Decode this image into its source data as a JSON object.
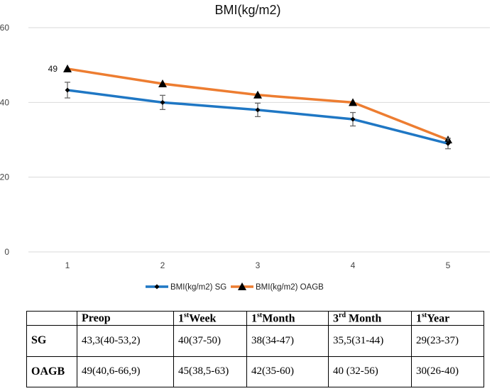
{
  "chart_data": {
    "type": "line",
    "title": "BMI(kg/m2)",
    "x": [
      1,
      2,
      3,
      4,
      5
    ],
    "categories": [
      "1",
      "2",
      "3",
      "4",
      "5"
    ],
    "ylim": [
      0,
      60
    ],
    "yticks": [
      0,
      20,
      40,
      60
    ],
    "grid": true,
    "legend_position": "bottom",
    "series": [
      {
        "name": "BMI(kg/m2) SG",
        "color": "#1f77c4",
        "marker": "diamond",
        "values": [
          43.3,
          40,
          38,
          35.5,
          29
        ],
        "error_low": [
          41.2,
          38.1,
          36.2,
          33.7,
          27.6
        ],
        "error_high": [
          45.4,
          41.9,
          39.8,
          37.3,
          30.4
        ]
      },
      {
        "name": "BMI(kg/m2) OAGB",
        "color": "#ed7d31",
        "marker": "triangle",
        "values": [
          49,
          45,
          42,
          40,
          30
        ]
      }
    ],
    "annotations": [
      {
        "series": 1,
        "index": 0,
        "text": "49"
      }
    ]
  },
  "table": {
    "headers": [
      {
        "main": "",
        "sup": "",
        "rest": ""
      },
      {
        "main": "Preop",
        "sup": "",
        "rest": ""
      },
      {
        "main": "1",
        "sup": "st",
        "rest": "Week"
      },
      {
        "main": "1",
        "sup": "st",
        "rest": "Month"
      },
      {
        "main": "3",
        "sup": "rd",
        "rest": " Month"
      },
      {
        "main": "1",
        "sup": "st",
        "rest": "Year"
      }
    ],
    "rows": [
      {
        "label": "SG",
        "cells": [
          "43,3(40-53,2)",
          "40(37-50)",
          "38(34-47)",
          "35,5(31-44)",
          "29(23-37)"
        ]
      },
      {
        "label": "OAGB",
        "cells": [
          "49(40,6-66,9)",
          "45(38,5-63)",
          "42(35-60)",
          "40 (32-56)",
          "30(26-40)"
        ]
      }
    ]
  }
}
